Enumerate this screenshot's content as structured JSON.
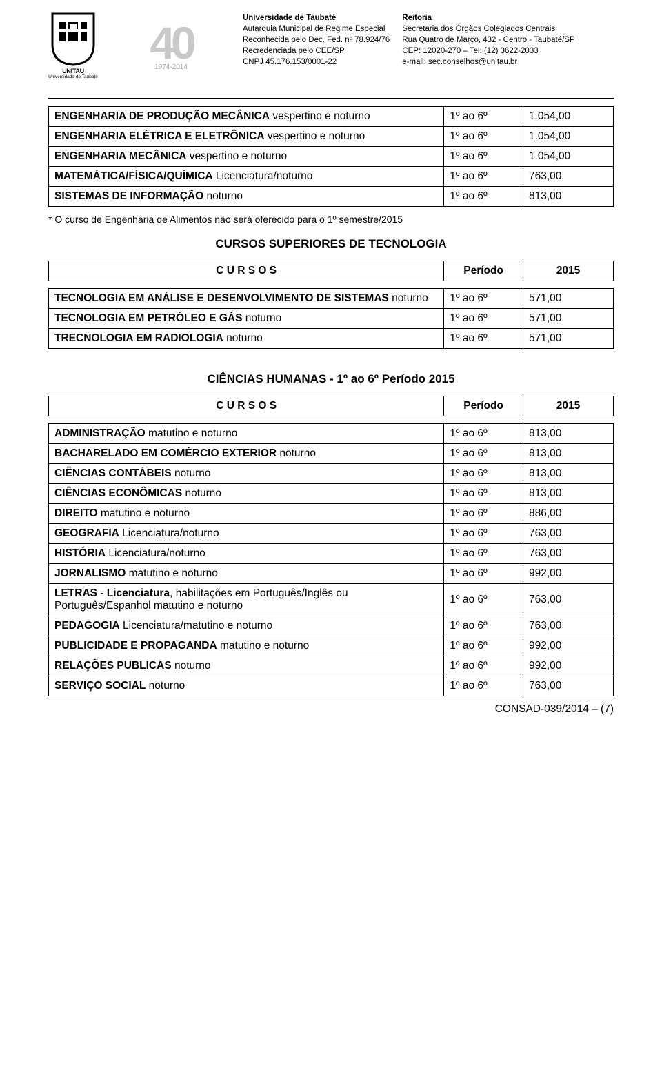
{
  "header": {
    "logo40": {
      "big": "40",
      "years": "1974-2014"
    },
    "unitau": {
      "brand": "UNITAU",
      "sub": "Universidade de Taubaté"
    },
    "left_col": {
      "l1": "Universidade de Taubaté",
      "l2": "Autarquia Municipal de Regime Especial",
      "l3": "Reconhecida pelo Dec. Fed. nº 78.924/76",
      "l4": "Recredenciada pelo CEE/SP",
      "l5": "CNPJ 45.176.153/0001-22"
    },
    "right_col": {
      "l1": "Reitoria",
      "l2": "Secretaria dos Órgãos Colegiados Centrais",
      "l3": "Rua Quatro de Março, 432 - Centro - Taubaté/SP",
      "l4": "CEP: 12020-270 – Tel: (12) 3622-2033",
      "l5": "e-mail: sec.conselhos@unitau.br"
    }
  },
  "tables": {
    "eng": {
      "rows": [
        {
          "name": "ENGENHARIA DE PRODUÇÃO MECÂNICA vespertino e noturno",
          "per": "1º ao 6º",
          "val": "1.054,00"
        },
        {
          "name": "ENGENHARIA ELÉTRICA E ELETRÔNICA vespertino e noturno",
          "per": "1º ao 6º",
          "val": "1.054,00"
        },
        {
          "name": "ENGENHARIA MECÂNICA vespertino e noturno",
          "per": "1º ao 6º",
          "val": "1.054,00"
        },
        {
          "name": "MATEMÁTICA/FÍSICA/QUÍMICA Licenciatura/noturno",
          "per": "1º ao 6º",
          "val": "763,00"
        },
        {
          "name": "SISTEMAS DE INFORMAÇÃO noturno",
          "per": "1º ao 6º",
          "val": "813,00"
        }
      ]
    },
    "tec": {
      "title": "CURSOS SUPERIORES DE TECNOLOGIA",
      "h1": "C U R S O S",
      "h2": "Período",
      "h3": "2015",
      "rows": [
        {
          "name": "TECNOLOGIA EM ANÁLISE E DESENVOLVIMENTO DE SISTEMAS noturno",
          "per": "1º ao 6º",
          "val": "571,00"
        },
        {
          "name": "TECNOLOGIA EM PETRÓLEO E GÁS noturno",
          "per": "1º ao 6º",
          "val": "571,00"
        },
        {
          "name": "TRECNOLOGIA EM RADIOLOGIA noturno",
          "per": "1º ao 6º",
          "val": "571,00"
        }
      ]
    },
    "hum": {
      "title": "CIÊNCIAS HUMANAS - 1º ao 6º Período 2015",
      "h1": "C U R S O S",
      "h2": "Período",
      "h3": "2015",
      "rows": [
        {
          "name": "ADMINISTRAÇÃO matutino e noturno",
          "per": "1º ao 6º",
          "val": "813,00"
        },
        {
          "name": "BACHARELADO EM COMÉRCIO EXTERIOR noturno",
          "per": "1º ao 6º",
          "val": "813,00"
        },
        {
          "name": "CIÊNCIAS CONTÁBEIS noturno",
          "per": "1º ao 6º",
          "val": "813,00"
        },
        {
          "name": "CIÊNCIAS ECONÔMICAS noturno",
          "per": "1º ao 6º",
          "val": "813,00"
        },
        {
          "name": "DIREITO matutino e noturno",
          "per": "1º ao 6º",
          "val": "886,00"
        },
        {
          "name": "GEOGRAFIA Licenciatura/noturno",
          "per": "1º ao 6º",
          "val": "763,00"
        },
        {
          "name": "HISTÓRIA Licenciatura/noturno",
          "per": "1º ao 6º",
          "val": "763,00"
        },
        {
          "name": "JORNALISMO matutino e noturno",
          "per": "1º ao 6º",
          "val": "992,00"
        },
        {
          "name": "LETRAS - Licenciatura, habilitações em Português/Inglês ou Português/Espanhol matutino e noturno",
          "per": "1º ao 6º",
          "val": "763,00"
        },
        {
          "name": "PEDAGOGIA Licenciatura/matutino e noturno",
          "per": "1º ao 6º",
          "val": "763,00"
        },
        {
          "name": "PUBLICIDADE E PROPAGANDA matutino e noturno",
          "per": "1º ao 6º",
          "val": "992,00"
        },
        {
          "name": "RELAÇÕES PUBLICAS noturno",
          "per": "1º ao 6º",
          "val": "992,00"
        },
        {
          "name": "SERVIÇO SOCIAL noturno",
          "per": "1º ao 6º",
          "val": "763,00"
        }
      ]
    }
  },
  "note": "* O curso de Engenharia de Alimentos não será oferecido para o 1º semestre/2015",
  "footer": "CONSAD-039/2014 – (7)",
  "bold_map": {
    "ENGENHARIA DE PRODUÇÃO MECÂNICA vespertino e noturno": "ENGENHARIA DE PRODUÇÃO MECÂNICA",
    "ENGENHARIA ELÉTRICA E ELETRÔNICA vespertino e noturno": "ENGENHARIA ELÉTRICA E ELETRÔNICA",
    "ENGENHARIA MECÂNICA vespertino e noturno": "ENGENHARIA MECÂNICA",
    "MATEMÁTICA/FÍSICA/QUÍMICA Licenciatura/noturno": "MATEMÁTICA/FÍSICA/QUÍMICA",
    "SISTEMAS DE INFORMAÇÃO noturno": "SISTEMAS DE INFORMAÇÃO",
    "TECNOLOGIA EM ANÁLISE E DESENVOLVIMENTO DE SISTEMAS noturno": "TECNOLOGIA EM ANÁLISE E DESENVOLVIMENTO DE SISTEMAS",
    "TECNOLOGIA EM PETRÓLEO E GÁS noturno": "TECNOLOGIA EM PETRÓLEO E GÁS",
    "TRECNOLOGIA EM RADIOLOGIA noturno": "TRECNOLOGIA EM RADIOLOGIA",
    "ADMINISTRAÇÃO matutino e noturno": "ADMINISTRAÇÃO",
    "BACHARELADO EM COMÉRCIO EXTERIOR noturno": "BACHARELADO EM COMÉRCIO EXTERIOR",
    "CIÊNCIAS CONTÁBEIS noturno": "CIÊNCIAS CONTÁBEIS",
    "CIÊNCIAS ECONÔMICAS noturno": "CIÊNCIAS ECONÔMICAS",
    "DIREITO matutino e noturno": "DIREITO",
    "GEOGRAFIA Licenciatura/noturno": "GEOGRAFIA",
    "HISTÓRIA Licenciatura/noturno": "HISTÓRIA",
    "JORNALISMO matutino e noturno": "JORNALISMO",
    "LETRAS - Licenciatura, habilitações em Português/Inglês ou Português/Espanhol matutino e noturno": "LETRAS - Licenciatura",
    "PEDAGOGIA Licenciatura/matutino e noturno": "PEDAGOGIA",
    "PUBLICIDADE E PROPAGANDA matutino e noturno": "PUBLICIDADE E PROPAGANDA",
    "RELAÇÕES PUBLICAS noturno": "RELAÇÕES PUBLICAS",
    "SERVIÇO SOCIAL noturno": "SERVIÇO SOCIAL"
  }
}
